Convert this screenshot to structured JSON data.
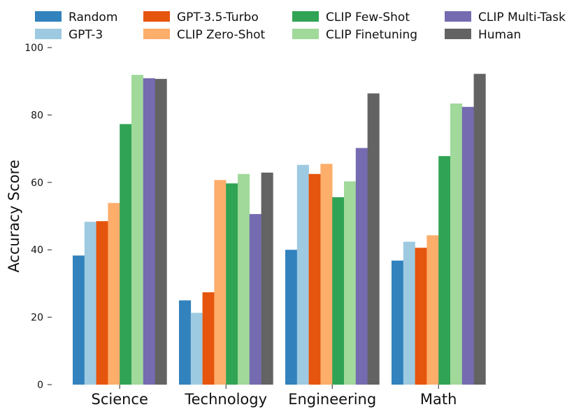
{
  "chart_data": {
    "type": "bar",
    "title": "",
    "xlabel": "",
    "ylabel": "Accuracy Score",
    "ylim": [
      0,
      100
    ],
    "yticks": [
      0,
      20,
      40,
      60,
      80,
      100
    ],
    "grid": false,
    "legend_position": "top",
    "categories": [
      "Science",
      "Technology",
      "Engineering",
      "Math"
    ],
    "series": [
      {
        "name": "Random",
        "color": "#3182bd",
        "values": [
          38.3,
          25.0,
          40.0,
          36.8
        ]
      },
      {
        "name": "GPT-3",
        "color": "#9ecae1",
        "values": [
          48.3,
          21.3,
          65.2,
          42.4
        ]
      },
      {
        "name": "GPT-3.5-Turbo",
        "color": "#e6550d",
        "values": [
          48.5,
          27.4,
          62.5,
          40.6
        ]
      },
      {
        "name": "CLIP Zero-Shot",
        "color": "#fdae6b",
        "values": [
          53.9,
          60.7,
          65.5,
          44.3
        ]
      },
      {
        "name": "CLIP Few-Shot",
        "color": "#31a354",
        "values": [
          77.3,
          59.7,
          55.6,
          67.8
        ]
      },
      {
        "name": "CLIP Finetuning",
        "color": "#a1d99b",
        "values": [
          91.9,
          62.5,
          60.3,
          83.4
        ]
      },
      {
        "name": "CLIP Multi-Task",
        "color": "#756bb1",
        "values": [
          90.9,
          50.6,
          70.2,
          82.4
        ]
      },
      {
        "name": "Human",
        "color": "#636363",
        "values": [
          90.7,
          62.9,
          86.4,
          92.2
        ]
      }
    ]
  }
}
